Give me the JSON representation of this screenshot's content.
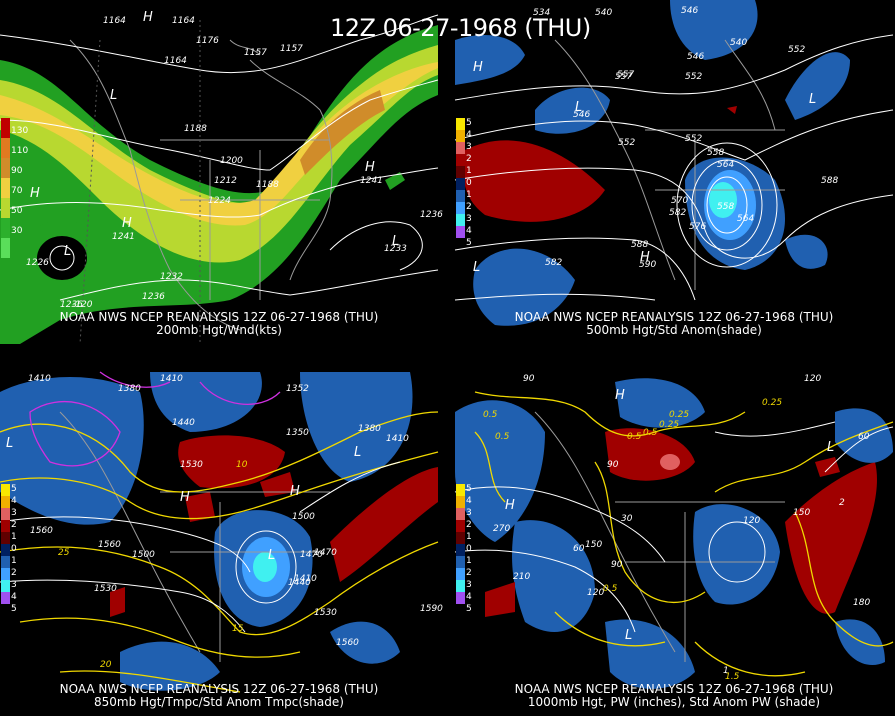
{
  "main_title": "12Z 06-27-1968 (THU)",
  "panels": [
    {
      "line1": "NOAA NWS NCEP REANALYSIS 12Z 06-27-1968 (THU)",
      "line2": "200mb Hgt/Wnd(kts)",
      "colorbar": {
        "colors": [
          "#c00000",
          "#e07a20",
          "#d08c2a",
          "#f0d040",
          "#b8d830",
          "#2cb02c",
          "#5ade5a"
        ],
        "labels": [
          "130",
          "110",
          "90",
          "70",
          "50",
          "30"
        ]
      },
      "labels": [
        "1164",
        "1164",
        "1176",
        "1164",
        "1157",
        "1157",
        "1188",
        "1200",
        "1212",
        "1188",
        "1224",
        "1241",
        "1241",
        "1236",
        "1233",
        "1236",
        "1236",
        "1232",
        "1226",
        "-120",
        "H",
        "H",
        "L",
        "L",
        "H",
        "H",
        "L"
      ]
    },
    {
      "line1": "NOAA NWS NCEP REANALYSIS 12Z 06-27-1968 (THU)",
      "line2": "500mb Hgt/Std Anom(shade)",
      "colorbar": {
        "colors": [
          "#f8e800",
          "#f0b000",
          "#e06060",
          "#a00000",
          "#600000",
          "#002060",
          "#2060b0",
          "#40a0ff",
          "#40f0f0",
          "#a050f0"
        ],
        "labels": [
          "5",
          "4",
          "3",
          "2",
          "1",
          "0",
          "1",
          "2",
          "3",
          "4",
          "5"
        ]
      },
      "labels": [
        "534",
        "540",
        "546",
        "540",
        "552",
        "546",
        "552",
        "557",
        "557",
        "546",
        "552",
        "558",
        "564",
        "570",
        "576",
        "582",
        "588",
        "582",
        "588",
        "558",
        "564",
        "552",
        "590",
        "H",
        "H",
        "L",
        "L",
        "L"
      ]
    },
    {
      "line1": "NOAA NWS NCEP REANALYSIS 12Z 06-27-1968 (THU)",
      "line2": "850mb Hgt/Tmpc/Std Anom Tmpc(shade)",
      "colorbar": {
        "colors": [
          "#f8e800",
          "#f0b000",
          "#e06060",
          "#a00000",
          "#600000",
          "#002060",
          "#2060b0",
          "#40a0ff",
          "#40f0f0",
          "#a050f0"
        ],
        "labels": [
          "5",
          "4",
          "3",
          "2",
          "1",
          "0",
          "1",
          "2",
          "3",
          "4",
          "5"
        ]
      },
      "labels": [
        "1410",
        "1380",
        "1410",
        "1352",
        "1440",
        "1350",
        "1380",
        "1410",
        "1560",
        "1500",
        "1470",
        "1530",
        "1560",
        "1530",
        "1500",
        "1590",
        "1470",
        "1410",
        "1440",
        "1530",
        "1560",
        "10",
        "15",
        "20",
        "25",
        "H",
        "H",
        "L",
        "L",
        "L"
      ]
    },
    {
      "line1": "NOAA NWS NCEP REANALYSIS 12Z 06-27-1968 (THU)",
      "line2": "1000mb Hgt, PW (inches), Std Anom PW (shade)",
      "colorbar": {
        "colors": [
          "#f8e800",
          "#f0b000",
          "#e06060",
          "#a00000",
          "#600000",
          "#002060",
          "#2060b0",
          "#40a0ff",
          "#40f0f0",
          "#a050f0"
        ],
        "labels": [
          "5",
          "4",
          "3",
          "2",
          "1",
          "0",
          "1",
          "2",
          "3",
          "4",
          "5"
        ]
      },
      "labels": [
        "90",
        "0.5",
        "0.5",
        "0.25",
        "0.5",
        "0.25",
        "0.5",
        "120",
        "0.25",
        "60",
        "270",
        "210",
        "150",
        "120",
        "90",
        "60",
        "30",
        "90",
        "120",
        "150",
        "180",
        "0.5",
        "1",
        "1.5",
        "2",
        "H",
        "H",
        "L",
        "L"
      ]
    }
  ]
}
